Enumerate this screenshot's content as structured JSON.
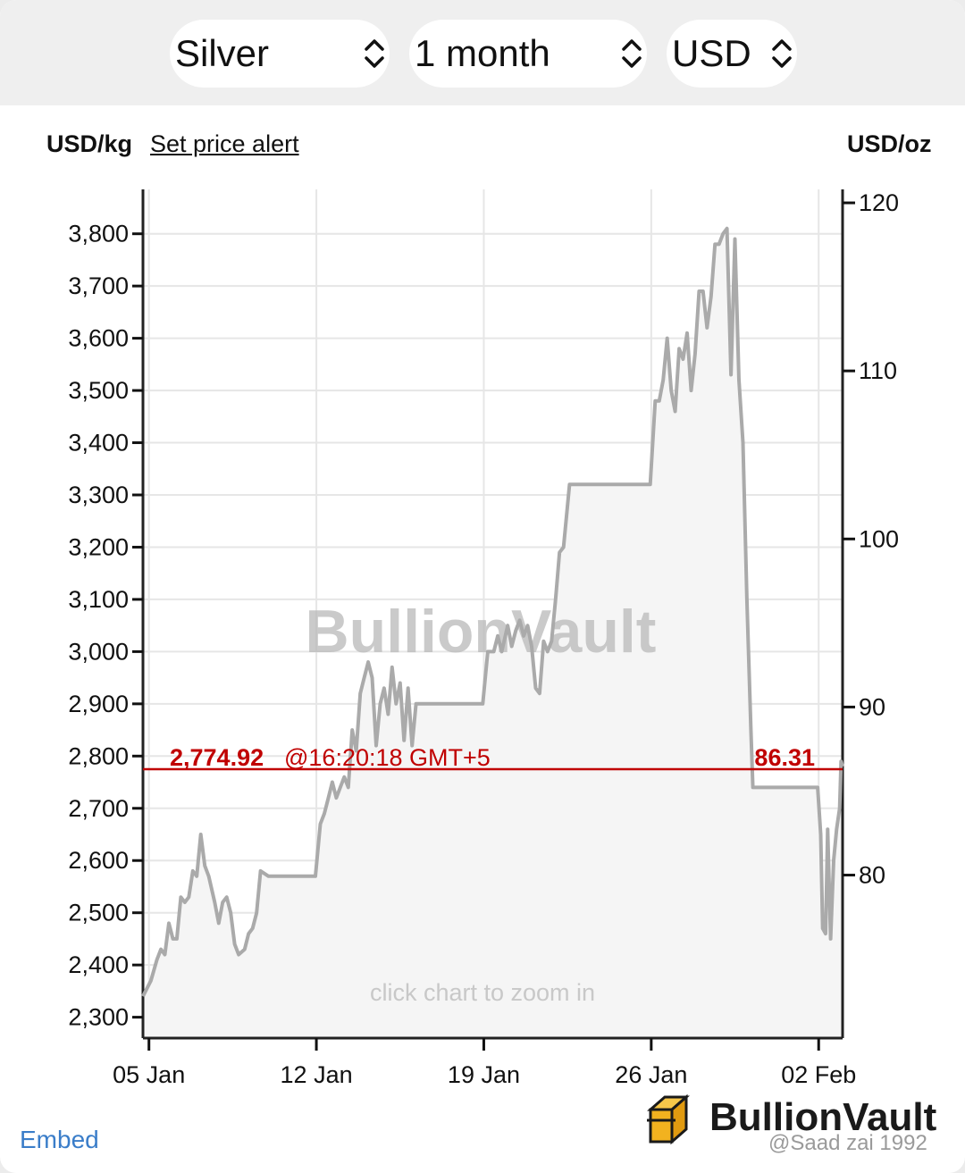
{
  "selectors": {
    "metal": "Silver",
    "period": "1 month",
    "currency": "USD"
  },
  "header": {
    "left_unit": "USD/kg",
    "price_alert": "Set price alert",
    "right_unit": "USD/oz"
  },
  "chart_data": {
    "type": "line",
    "left_axis": {
      "label": "USD/kg",
      "ticks": [
        "2,300",
        "2,400",
        "2,500",
        "2,600",
        "2,700",
        "2,800",
        "2,900",
        "3,000",
        "3,100",
        "3,200",
        "3,300",
        "3,400",
        "3,500",
        "3,600",
        "3,700",
        "3,800"
      ],
      "range": [
        2260,
        3885
      ]
    },
    "right_axis": {
      "label": "USD/oz",
      "ticks": [
        "80",
        "90",
        "100",
        "110",
        "120"
      ],
      "range": [
        70.3,
        120.8
      ]
    },
    "x_ticks": [
      "05 Jan",
      "12 Jan",
      "19 Jan",
      "26 Jan",
      "02 Feb"
    ],
    "x_range": [
      "2026-01-04T18:00",
      "2026-02-03T00:00"
    ],
    "series": [
      {
        "unit": "USD/kg",
        "points": [
          [
            "2026-01-04T18:00",
            2340
          ],
          [
            "2026-01-05T02:00",
            2370
          ],
          [
            "2026-01-05T08:00",
            2410
          ],
          [
            "2026-01-05T12:00",
            2430
          ],
          [
            "2026-01-05T16:00",
            2420
          ],
          [
            "2026-01-05T20:00",
            2480
          ],
          [
            "2026-01-06T00:00",
            2450
          ],
          [
            "2026-01-06T04:00",
            2450
          ],
          [
            "2026-01-06T08:00",
            2530
          ],
          [
            "2026-01-06T12:00",
            2520
          ],
          [
            "2026-01-06T16:00",
            2530
          ],
          [
            "2026-01-06T20:00",
            2580
          ],
          [
            "2026-01-07T00:00",
            2570
          ],
          [
            "2026-01-07T04:00",
            2650
          ],
          [
            "2026-01-07T08:00",
            2590
          ],
          [
            "2026-01-07T12:00",
            2570
          ],
          [
            "2026-01-07T18:00",
            2520
          ],
          [
            "2026-01-07T22:00",
            2480
          ],
          [
            "2026-01-08T02:00",
            2520
          ],
          [
            "2026-01-08T06:00",
            2530
          ],
          [
            "2026-01-08T10:00",
            2500
          ],
          [
            "2026-01-08T14:00",
            2440
          ],
          [
            "2026-01-08T18:00",
            2420
          ],
          [
            "2026-01-09T00:00",
            2430
          ],
          [
            "2026-01-09T04:00",
            2460
          ],
          [
            "2026-01-09T08:00",
            2470
          ],
          [
            "2026-01-09T12:00",
            2500
          ],
          [
            "2026-01-09T16:00",
            2580
          ],
          [
            "2026-01-10T00:00",
            2570
          ],
          [
            "2026-01-11T00:00",
            2570
          ],
          [
            "2026-01-11T23:00",
            2570
          ],
          [
            "2026-01-12T04:00",
            2670
          ],
          [
            "2026-01-12T08:00",
            2690
          ],
          [
            "2026-01-12T12:00",
            2720
          ],
          [
            "2026-01-12T16:00",
            2750
          ],
          [
            "2026-01-12T20:00",
            2720
          ],
          [
            "2026-01-13T00:00",
            2740
          ],
          [
            "2026-01-13T04:00",
            2760
          ],
          [
            "2026-01-13T08:00",
            2740
          ],
          [
            "2026-01-13T12:00",
            2850
          ],
          [
            "2026-01-13T16:00",
            2810
          ],
          [
            "2026-01-13T20:00",
            2920
          ],
          [
            "2026-01-14T00:00",
            2950
          ],
          [
            "2026-01-14T04:00",
            2980
          ],
          [
            "2026-01-14T08:00",
            2950
          ],
          [
            "2026-01-14T12:00",
            2820
          ],
          [
            "2026-01-14T16:00",
            2900
          ],
          [
            "2026-01-14T20:00",
            2930
          ],
          [
            "2026-01-15T00:00",
            2880
          ],
          [
            "2026-01-15T04:00",
            2970
          ],
          [
            "2026-01-15T08:00",
            2900
          ],
          [
            "2026-01-15T12:00",
            2940
          ],
          [
            "2026-01-15T16:00",
            2830
          ],
          [
            "2026-01-15T20:00",
            2930
          ],
          [
            "2026-01-16T00:00",
            2820
          ],
          [
            "2026-01-16T04:00",
            2900
          ],
          [
            "2026-01-17T00:00",
            2900
          ],
          [
            "2026-01-18T00:00",
            2900
          ],
          [
            "2026-01-18T23:00",
            2900
          ],
          [
            "2026-01-19T04:00",
            3000
          ],
          [
            "2026-01-19T10:00",
            3000
          ],
          [
            "2026-01-19T14:00",
            3030
          ],
          [
            "2026-01-19T18:00",
            3000
          ],
          [
            "2026-01-20T00:00",
            3050
          ],
          [
            "2026-01-20T04:00",
            3010
          ],
          [
            "2026-01-20T08:00",
            3040
          ],
          [
            "2026-01-20T12:00",
            3060
          ],
          [
            "2026-01-20T16:00",
            3030
          ],
          [
            "2026-01-20T20:00",
            3050
          ],
          [
            "2026-01-21T00:00",
            3010
          ],
          [
            "2026-01-21T04:00",
            2930
          ],
          [
            "2026-01-21T08:00",
            2920
          ],
          [
            "2026-01-21T12:00",
            3020
          ],
          [
            "2026-01-21T16:00",
            3000
          ],
          [
            "2026-01-21T20:00",
            3020
          ],
          [
            "2026-01-22T00:00",
            3100
          ],
          [
            "2026-01-22T04:00",
            3190
          ],
          [
            "2026-01-22T08:00",
            3200
          ],
          [
            "2026-01-22T14:00",
            3320
          ],
          [
            "2026-01-23T00:00",
            3320
          ],
          [
            "2026-01-24T00:00",
            3320
          ],
          [
            "2026-01-25T00:00",
            3320
          ],
          [
            "2026-01-25T23:00",
            3320
          ],
          [
            "2026-01-26T04:00",
            3480
          ],
          [
            "2026-01-26T08:00",
            3480
          ],
          [
            "2026-01-26T12:00",
            3520
          ],
          [
            "2026-01-26T16:00",
            3600
          ],
          [
            "2026-01-26T20:00",
            3500
          ],
          [
            "2026-01-27T00:00",
            3460
          ],
          [
            "2026-01-27T04:00",
            3580
          ],
          [
            "2026-01-27T08:00",
            3560
          ],
          [
            "2026-01-27T12:00",
            3610
          ],
          [
            "2026-01-27T16:00",
            3500
          ],
          [
            "2026-01-27T20:00",
            3570
          ],
          [
            "2026-01-28T00:00",
            3690
          ],
          [
            "2026-01-28T04:00",
            3690
          ],
          [
            "2026-01-28T08:00",
            3620
          ],
          [
            "2026-01-28T12:00",
            3680
          ],
          [
            "2026-01-28T16:00",
            3780
          ],
          [
            "2026-01-28T20:00",
            3780
          ],
          [
            "2026-01-29T00:00",
            3800
          ],
          [
            "2026-01-29T04:00",
            3810
          ],
          [
            "2026-01-29T08:00",
            3530
          ],
          [
            "2026-01-29T12:00",
            3790
          ],
          [
            "2026-01-29T16:00",
            3520
          ],
          [
            "2026-01-29T20:00",
            3400
          ],
          [
            "2026-01-30T00:00",
            3100
          ],
          [
            "2026-01-30T04:00",
            2850
          ],
          [
            "2026-01-30T06:00",
            2740
          ],
          [
            "2026-01-31T00:00",
            2740
          ],
          [
            "2026-02-01T00:00",
            2740
          ],
          [
            "2026-02-01T23:00",
            2740
          ],
          [
            "2026-02-02T02:00",
            2650
          ],
          [
            "2026-02-02T04:00",
            2470
          ],
          [
            "2026-02-02T07:00",
            2460
          ],
          [
            "2026-02-02T09:00",
            2660
          ],
          [
            "2026-02-02T12:00",
            2450
          ],
          [
            "2026-02-02T15:00",
            2600
          ],
          [
            "2026-02-02T18:00",
            2660
          ],
          [
            "2026-02-02T21:00",
            2700
          ],
          [
            "2026-02-02T22:30",
            2790
          ],
          [
            "2026-02-03T00:00",
            2780
          ]
        ]
      }
    ],
    "current": {
      "value_kg": 2774.92,
      "label": "2,774.92",
      "time": "@16:20:18 GMT+5",
      "value_oz": "86.31",
      "color": "#c00000"
    },
    "watermark": "BullionVault",
    "hint": "click chart to zoom in",
    "grid": true
  },
  "footer": {
    "embed": "Embed",
    "brand": "BullionVault",
    "watermark_text": "@Saad zai 1992"
  },
  "colors": {
    "line": "#aaaaaa",
    "fill": "#f5f5f5",
    "current": "#c00000",
    "link": "#3a7dc9"
  }
}
